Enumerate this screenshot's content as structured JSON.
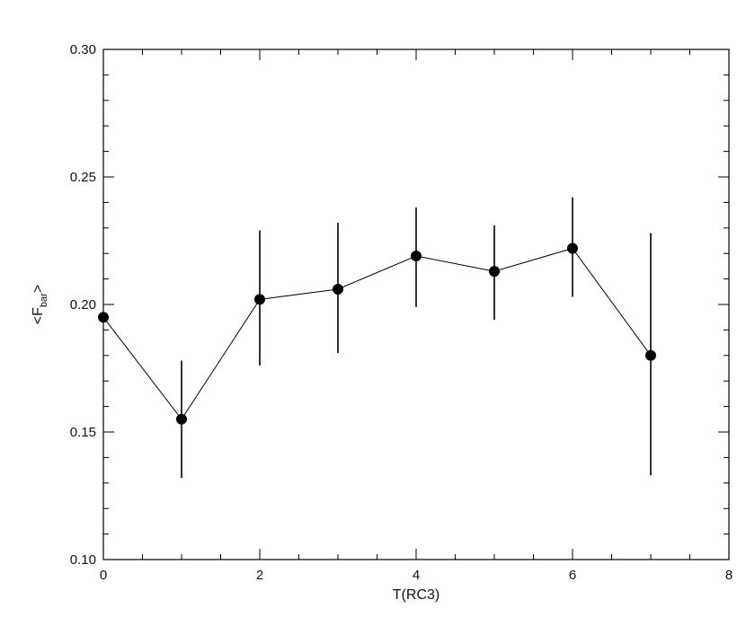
{
  "chart_data": {
    "type": "line",
    "title": "",
    "xlabel": "T(RC3)",
    "ylabel": "<F",
    "ylabel_subscript": "bar",
    "ylabel_suffix": ">",
    "xlim": [
      0,
      8
    ],
    "ylim": [
      0.1,
      0.3
    ],
    "x_ticks": [
      0,
      2,
      4,
      6,
      8
    ],
    "x_tick_labels": [
      "0",
      "2",
      "4",
      "6",
      "8"
    ],
    "y_ticks": [
      0.1,
      0.15,
      0.2,
      0.25,
      0.3
    ],
    "y_tick_labels": [
      "0.10",
      "0.15",
      "0.20",
      "0.25",
      "0.30"
    ],
    "x_minor_step": 0.5,
    "y_minor_step": 0.01,
    "grid": false,
    "legend": "none",
    "series": [
      {
        "x": [
          0,
          1,
          2,
          3,
          4,
          5,
          6,
          7
        ],
        "y": [
          0.195,
          0.155,
          0.202,
          0.206,
          0.219,
          0.213,
          0.222,
          0.18
        ],
        "yerr_low": [
          null,
          0.132,
          0.176,
          0.181,
          0.199,
          0.194,
          0.203,
          0.133
        ],
        "yerr_high": [
          null,
          0.178,
          0.229,
          0.232,
          0.238,
          0.231,
          0.242,
          0.228
        ]
      }
    ]
  }
}
